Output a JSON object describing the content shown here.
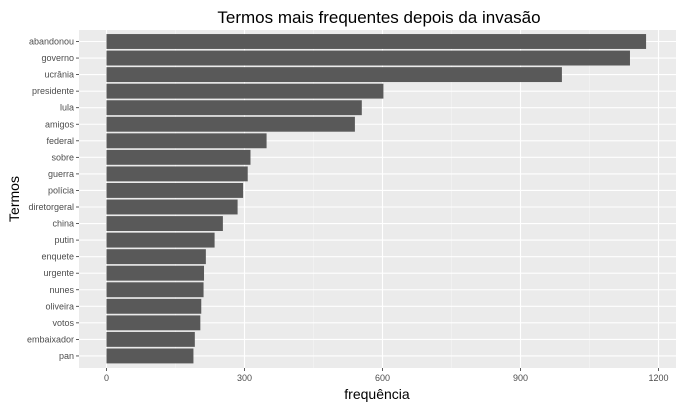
{
  "chart_data": {
    "type": "bar",
    "orientation": "horizontal",
    "title": "Termos mais frequentes depois da invasão",
    "xlabel": "frequência",
    "ylabel": "Termos",
    "xlim": [
      0,
      1230
    ],
    "xticks": [
      0,
      300,
      600,
      900,
      1200
    ],
    "grid": true,
    "legend": "none",
    "colors": {
      "bar": "#595959",
      "panel": "#ebebeb",
      "grid_major": "#ffffff",
      "grid_minor": "#f5f5f5"
    },
    "categories": [
      "abandonou",
      "governo",
      "ucrânia",
      "presidente",
      "lula",
      "amigos",
      "federal",
      "sobre",
      "guerra",
      "polícia",
      "diretorgeral",
      "china",
      "putin",
      "enquete",
      "urgente",
      "nunes",
      "oliveira",
      "votos",
      "embaixador",
      "pan"
    ],
    "values": [
      1173,
      1138,
      990,
      602,
      555,
      540,
      348,
      313,
      307,
      297,
      285,
      253,
      235,
      216,
      212,
      211,
      206,
      204,
      192,
      189
    ]
  }
}
